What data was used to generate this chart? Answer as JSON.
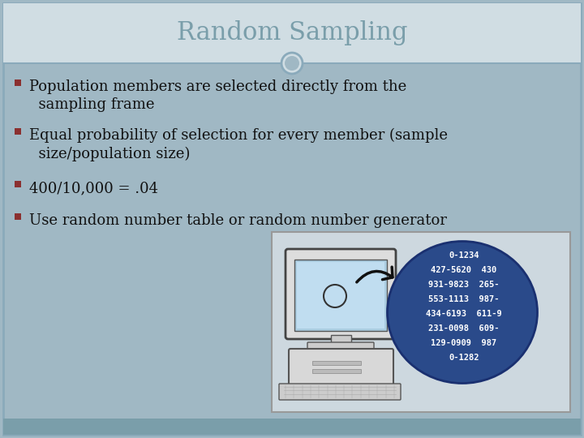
{
  "title": "Random Sampling",
  "title_color": "#7a9eaa",
  "title_fontsize": 22,
  "background_color": "#a0b8c4",
  "header_bg": "#d0dde3",
  "footer_bg": "#7a9eaa",
  "bullet_color": "#8b3030",
  "text_color": "#111111",
  "bullets": [
    "Population members are selected directly from the\n  sampling frame",
    "Equal probability of selection for every member (sample\n  size/population size)",
    "400/10,000 = .04",
    "Use random number table or random number generator"
  ],
  "font_family": "serif",
  "text_fontsize": 13,
  "circle_edge": "#8aaabb",
  "border_color": "#8aaabb",
  "oval_color": "#2a4a8a",
  "oval_edge": "#1a3070",
  "numbers": [
    "0-1234",
    "427-5620  430",
    "931-9823  265-",
    "553-1113  987-",
    "434-6193  611-9",
    "231-0098  609-",
    "129-0909  987",
    "0-1282"
  ]
}
